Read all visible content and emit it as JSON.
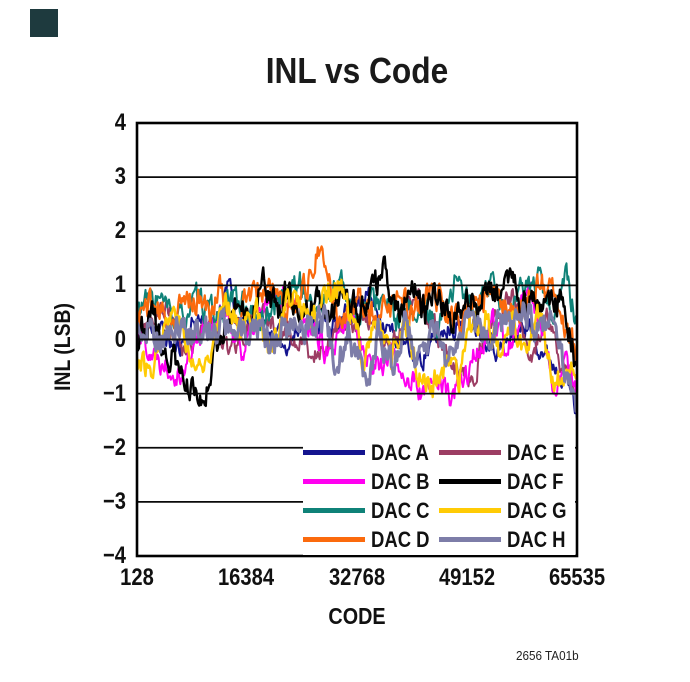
{
  "corner_marker_color": "#1e3a3e",
  "figure_note": "2656 TA01b",
  "chart_data": {
    "type": "line",
    "title": "INL vs Code",
    "xlabel": "CODE",
    "ylabel": "INL (LSB)",
    "xlim": [
      128,
      65535
    ],
    "ylim": [
      -4,
      4
    ],
    "grid": "horizontal-only",
    "legend_position": "inside-bottom-right",
    "x_ticks": [
      {
        "label": "128",
        "value": 128
      },
      {
        "label": "16384",
        "value": 16384
      },
      {
        "label": "32768",
        "value": 32768
      },
      {
        "label": "49152",
        "value": 49152
      },
      {
        "label": "65535",
        "value": 65535
      }
    ],
    "y_ticks": [
      {
        "label": "4",
        "value": 4
      },
      {
        "label": "3",
        "value": 3
      },
      {
        "label": "2",
        "value": 2
      },
      {
        "label": "1",
        "value": 1
      },
      {
        "label": "0",
        "value": 0
      },
      {
        "label": "−1",
        "value": -1
      },
      {
        "label": "−2",
        "value": -2
      },
      {
        "label": "−3",
        "value": -3
      },
      {
        "label": "−4",
        "value": -4
      }
    ],
    "legend_rows": [
      [
        0,
        4
      ],
      [
        1,
        5
      ],
      [
        2,
        6
      ],
      [
        3,
        7
      ]
    ],
    "draw_order": [
      0,
      4,
      1,
      2,
      3,
      5,
      6,
      7
    ],
    "series": [
      {
        "name": "DAC A",
        "color": "#14148F",
        "seed": 11,
        "spread": 0.2,
        "points": [
          [
            128,
            0.1
          ],
          [
            3000,
            0.3
          ],
          [
            6000,
            -0.2
          ],
          [
            9000,
            0.4
          ],
          [
            12000,
            0.2
          ],
          [
            13600,
            1.15
          ],
          [
            15000,
            0.2
          ],
          [
            18000,
            0.4
          ],
          [
            22000,
            -0.1
          ],
          [
            26000,
            0.4
          ],
          [
            30000,
            0.2
          ],
          [
            34000,
            0.9
          ],
          [
            38000,
            0.1
          ],
          [
            42000,
            -0.4
          ],
          [
            46000,
            0.2
          ],
          [
            50000,
            0.4
          ],
          [
            54000,
            -0.2
          ],
          [
            58000,
            0.3
          ],
          [
            61000,
            -0.3
          ],
          [
            63500,
            -0.6
          ],
          [
            65000,
            -1.1
          ],
          [
            65535,
            -1.45
          ]
        ]
      },
      {
        "name": "DAC B",
        "color": "#FF00F0",
        "seed": 22,
        "spread": 0.24,
        "points": [
          [
            128,
            0.2
          ],
          [
            3000,
            -0.3
          ],
          [
            7000,
            -0.6
          ],
          [
            10000,
            0.3
          ],
          [
            13000,
            0.5
          ],
          [
            16000,
            -0.2
          ],
          [
            19000,
            0.6
          ],
          [
            23000,
            0.9
          ],
          [
            26000,
            0.3
          ],
          [
            29000,
            -0.4
          ],
          [
            32000,
            0.5
          ],
          [
            35000,
            -0.5
          ],
          [
            38000,
            -0.3
          ],
          [
            41000,
            -0.8
          ],
          [
            43000,
            -1.05
          ],
          [
            45000,
            -0.7
          ],
          [
            46500,
            -1.1
          ],
          [
            48000,
            -0.9
          ],
          [
            50000,
            -0.4
          ],
          [
            53000,
            0.3
          ],
          [
            55000,
            -0.3
          ],
          [
            58100,
            1.05
          ],
          [
            60000,
            0.2
          ],
          [
            62000,
            -0.8
          ],
          [
            64000,
            -0.3
          ],
          [
            65535,
            -1.0
          ]
        ]
      },
      {
        "name": "DAC C",
        "color": "#0F8278",
        "seed": 33,
        "spread": 0.24,
        "points": [
          [
            128,
            0.55
          ],
          [
            3000,
            0.8
          ],
          [
            6000,
            0.3
          ],
          [
            9000,
            0.7
          ],
          [
            12000,
            0.4
          ],
          [
            15000,
            0.8
          ],
          [
            18000,
            0.3
          ],
          [
            21000,
            0.7
          ],
          [
            24200,
            1.06
          ],
          [
            27000,
            0.5
          ],
          [
            30300,
            1.1
          ],
          [
            33000,
            0.4
          ],
          [
            36000,
            0.8
          ],
          [
            39000,
            0.3
          ],
          [
            42000,
            0.6
          ],
          [
            45000,
            0.3
          ],
          [
            47700,
            1.2
          ],
          [
            50000,
            0.5
          ],
          [
            52500,
            1.0
          ],
          [
            55000,
            0.4
          ],
          [
            57500,
            0.9
          ],
          [
            60000,
            1.05
          ],
          [
            62000,
            0.5
          ],
          [
            64000,
            1.1
          ],
          [
            65535,
            0.3
          ]
        ]
      },
      {
        "name": "DAC D",
        "color": "#FB6A0D",
        "seed": 44,
        "spread": 0.26,
        "points": [
          [
            128,
            0.45
          ],
          [
            2000,
            0.7
          ],
          [
            5000,
            0.3
          ],
          [
            8000,
            0.8
          ],
          [
            11000,
            0.5
          ],
          [
            12500,
            1.0
          ],
          [
            14000,
            0.4
          ],
          [
            17000,
            0.8
          ],
          [
            20000,
            1.0
          ],
          [
            22000,
            0.5
          ],
          [
            24500,
            0.9
          ],
          [
            26000,
            1.2
          ],
          [
            27200,
            1.63
          ],
          [
            28500,
            1.1
          ],
          [
            30000,
            0.4
          ],
          [
            33000,
            0.7
          ],
          [
            36000,
            0.3
          ],
          [
            39000,
            0.8
          ],
          [
            41000,
            0.5
          ],
          [
            44000,
            0.9
          ],
          [
            47000,
            0.3
          ],
          [
            50000,
            0.6
          ],
          [
            53000,
            0.9
          ],
          [
            56000,
            0.4
          ],
          [
            58000,
            0.8
          ],
          [
            60500,
            1.0
          ],
          [
            62300,
            0.75
          ],
          [
            64000,
            0.3
          ],
          [
            65535,
            -0.3
          ]
        ]
      },
      {
        "name": "DAC E",
        "color": "#9C3D63",
        "seed": 55,
        "spread": 0.2,
        "points": [
          [
            128,
            0.2
          ],
          [
            2500,
            0.5
          ],
          [
            4600,
            0.72
          ],
          [
            7000,
            -0.3
          ],
          [
            10000,
            0.3
          ],
          [
            14000,
            -0.2
          ],
          [
            18000,
            0.5
          ],
          [
            22000,
            0.1
          ],
          [
            26000,
            -0.3
          ],
          [
            30000,
            0.2
          ],
          [
            34000,
            0.4
          ],
          [
            38000,
            -0.2
          ],
          [
            41600,
            0.9
          ],
          [
            44000,
            0.3
          ],
          [
            47000,
            -0.5
          ],
          [
            50000,
            -0.7
          ],
          [
            53000,
            0.4
          ],
          [
            56000,
            0.8
          ],
          [
            58500,
            -0.4
          ],
          [
            61000,
            0.5
          ],
          [
            63000,
            -0.5
          ],
          [
            65535,
            -0.9
          ]
        ]
      },
      {
        "name": "DAC F",
        "color": "#000000",
        "seed": 66,
        "spread": 0.28,
        "points": [
          [
            128,
            0.1
          ],
          [
            2000,
            0.5
          ],
          [
            5000,
            -0.3
          ],
          [
            7500,
            -0.8
          ],
          [
            9500,
            -1.22
          ],
          [
            11000,
            -0.5
          ],
          [
            13000,
            0.3
          ],
          [
            15000,
            0.8
          ],
          [
            17000,
            0.4
          ],
          [
            19000,
            1.05
          ],
          [
            21000,
            0.5
          ],
          [
            23000,
            0.9
          ],
          [
            25000,
            0.3
          ],
          [
            27000,
            0.9
          ],
          [
            29000,
            0.5
          ],
          [
            31000,
            1.0
          ],
          [
            33000,
            0.4
          ],
          [
            35000,
            0.9
          ],
          [
            37000,
            1.2
          ],
          [
            39000,
            0.6
          ],
          [
            41000,
            1.0
          ],
          [
            43000,
            0.5
          ],
          [
            45000,
            0.9
          ],
          [
            47000,
            0.4
          ],
          [
            49000,
            0.8
          ],
          [
            51000,
            0.6
          ],
          [
            53000,
            1.0
          ],
          [
            54500,
            0.8
          ],
          [
            56000,
            1.52
          ],
          [
            57500,
            0.6
          ],
          [
            59000,
            0.9
          ],
          [
            61000,
            0.4
          ],
          [
            63000,
            0.8
          ],
          [
            65535,
            -0.5
          ]
        ]
      },
      {
        "name": "DAC G",
        "color": "#FFCB05",
        "seed": 77,
        "spread": 0.26,
        "points": [
          [
            128,
            -0.3
          ],
          [
            2000,
            -0.6
          ],
          [
            4000,
            0.3
          ],
          [
            6000,
            0.6
          ],
          [
            8000,
            -0.4
          ],
          [
            10000,
            -0.57
          ],
          [
            12000,
            0.4
          ],
          [
            14000,
            0.7
          ],
          [
            16000,
            0.2
          ],
          [
            18000,
            0.6
          ],
          [
            20000,
            -0.3
          ],
          [
            22000,
            0.5
          ],
          [
            24000,
            0.76
          ],
          [
            26000,
            0.3
          ],
          [
            28000,
            0.9
          ],
          [
            30000,
            1.04
          ],
          [
            32000,
            0.3
          ],
          [
            34000,
            -0.33
          ],
          [
            36000,
            0.5
          ],
          [
            38000,
            -0.5
          ],
          [
            40000,
            0.4
          ],
          [
            42000,
            -0.7
          ],
          [
            44000,
            -0.9
          ],
          [
            46000,
            -0.5
          ],
          [
            48000,
            -0.8
          ],
          [
            50000,
            0.3
          ],
          [
            52000,
            0.6
          ],
          [
            54000,
            -0.4
          ],
          [
            56000,
            0.5
          ],
          [
            58000,
            -0.3
          ],
          [
            60000,
            0.4
          ],
          [
            62000,
            -0.6
          ],
          [
            64000,
            -0.8
          ],
          [
            65535,
            -0.6
          ]
        ]
      },
      {
        "name": "DAC H",
        "color": "#7D7DA8",
        "seed": 88,
        "spread": 0.28,
        "points": [
          [
            128,
            0.1
          ],
          [
            2000,
            0.3
          ],
          [
            4000,
            -0.1
          ],
          [
            6000,
            0.25
          ],
          [
            8000,
            0.0
          ],
          [
            10000,
            0.3
          ],
          [
            12000,
            0.1
          ],
          [
            14000,
            0.35
          ],
          [
            16000,
            0.0
          ],
          [
            18000,
            0.3
          ],
          [
            20000,
            -0.2
          ],
          [
            22000,
            0.2
          ],
          [
            24000,
            0.4
          ],
          [
            26000,
            0.1
          ],
          [
            28000,
            0.35
          ],
          [
            30000,
            -0.55
          ],
          [
            31500,
            0.2
          ],
          [
            33000,
            -0.4
          ],
          [
            34500,
            -0.8
          ],
          [
            36000,
            0.2
          ],
          [
            38000,
            -0.5
          ],
          [
            40000,
            0.3
          ],
          [
            42000,
            -0.3
          ],
          [
            44000,
            0.2
          ],
          [
            46000,
            -0.4
          ],
          [
            48000,
            0.25
          ],
          [
            50000,
            0.45
          ],
          [
            52000,
            0.1
          ],
          [
            54000,
            0.4
          ],
          [
            56000,
            0.15
          ],
          [
            58000,
            0.45
          ],
          [
            60000,
            0.1
          ],
          [
            61500,
            0.4
          ],
          [
            63000,
            -0.3
          ],
          [
            64500,
            -0.9
          ],
          [
            65535,
            -1.25
          ]
        ]
      }
    ]
  }
}
